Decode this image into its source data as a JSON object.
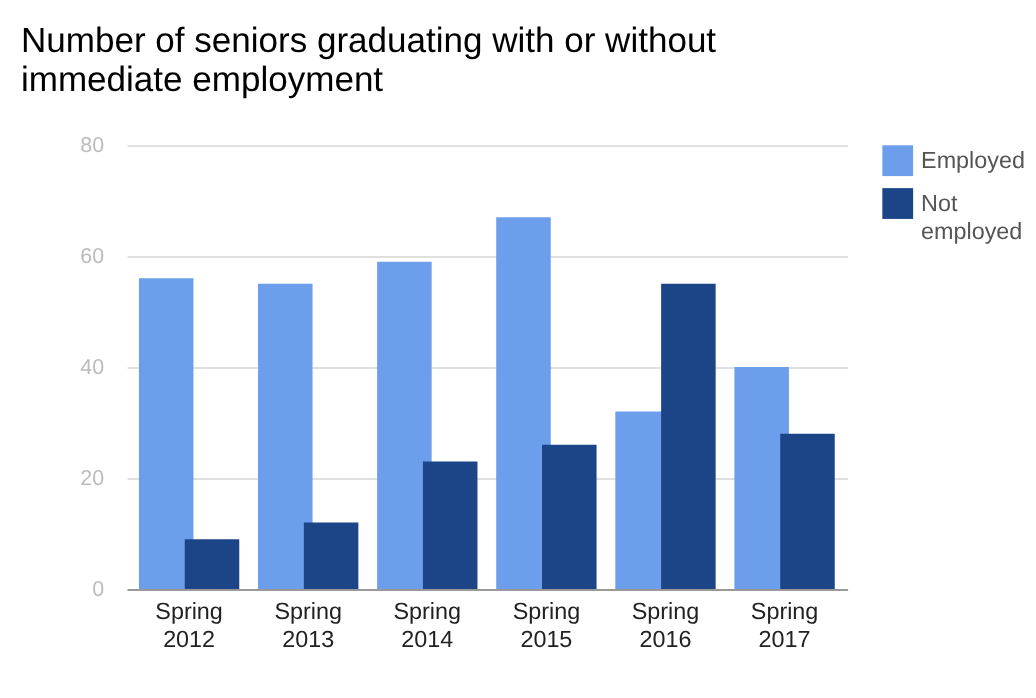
{
  "chart_data": {
    "type": "bar",
    "title": "Number of seniors graduating with or without immediate employment",
    "categories": [
      "Spring 2012",
      "Spring 2013",
      "Spring 2014",
      "Spring 2015",
      "Spring 2016",
      "Spring 2017"
    ],
    "series": [
      {
        "name": "Employed",
        "color": "#6d9eeb",
        "values": [
          56,
          55,
          59,
          67,
          32,
          40
        ]
      },
      {
        "name": "Not employed",
        "color": "#1c4587",
        "values": [
          9,
          12,
          23,
          26,
          55,
          28
        ]
      }
    ],
    "ylim": [
      0,
      80
    ],
    "yticks": [
      0,
      20,
      40,
      60,
      80
    ],
    "grid": "y",
    "legend": "top right"
  }
}
